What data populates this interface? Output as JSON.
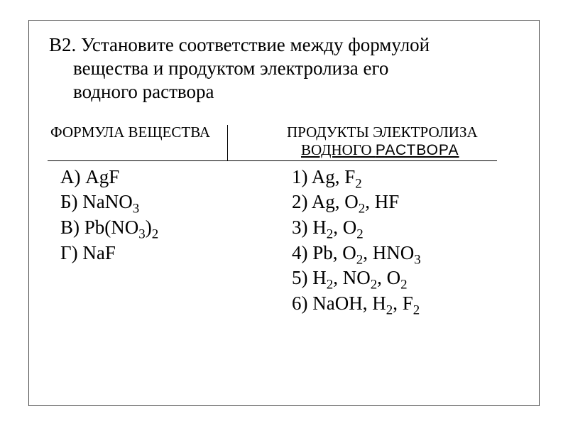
{
  "question": {
    "prefix": "В2. ",
    "line1": "Установите соответствие между формулой",
    "line2": "вещества и продуктом электролиза его",
    "line3": "водного раствора"
  },
  "headers": {
    "left": "ФОРМУЛА ВЕЩЕСТВА",
    "right_line1": "ПРОДУКТЫ ЭЛЕКТРОЛИЗА",
    "right_line2_a": "ВОДНОГО ",
    "right_line2_b": "РАСТВОРА"
  },
  "left_items": [
    {
      "label": "А) ",
      "formula": "AgF"
    },
    {
      "label": "Б) ",
      "formula": "NaNO<sub>3</sub>"
    },
    {
      "label": "В) ",
      "formula": "Pb(NO<sub>3</sub>)<sub>2</sub>"
    },
    {
      "label": "Г) ",
      "formula": "NaF"
    }
  ],
  "right_items": [
    {
      "label": "1) ",
      "formula": "Ag, F<sub>2</sub>"
    },
    {
      "label": "2) ",
      "formula": "Ag, O<sub>2</sub>, HF"
    },
    {
      "label": "3) ",
      "formula": "H<sub>2</sub>, O<sub>2</sub>"
    },
    {
      "label": "4) ",
      "formula": "Pb, O<sub>2</sub>, HNO<sub>3</sub>"
    },
    {
      "label": "5) ",
      "formula": "H<sub>2</sub>, NO<sub>2</sub>, O<sub>2</sub>"
    },
    {
      "label": "6) ",
      "formula": "NaOH, H<sub>2</sub>, F<sub>2</sub>"
    }
  ]
}
